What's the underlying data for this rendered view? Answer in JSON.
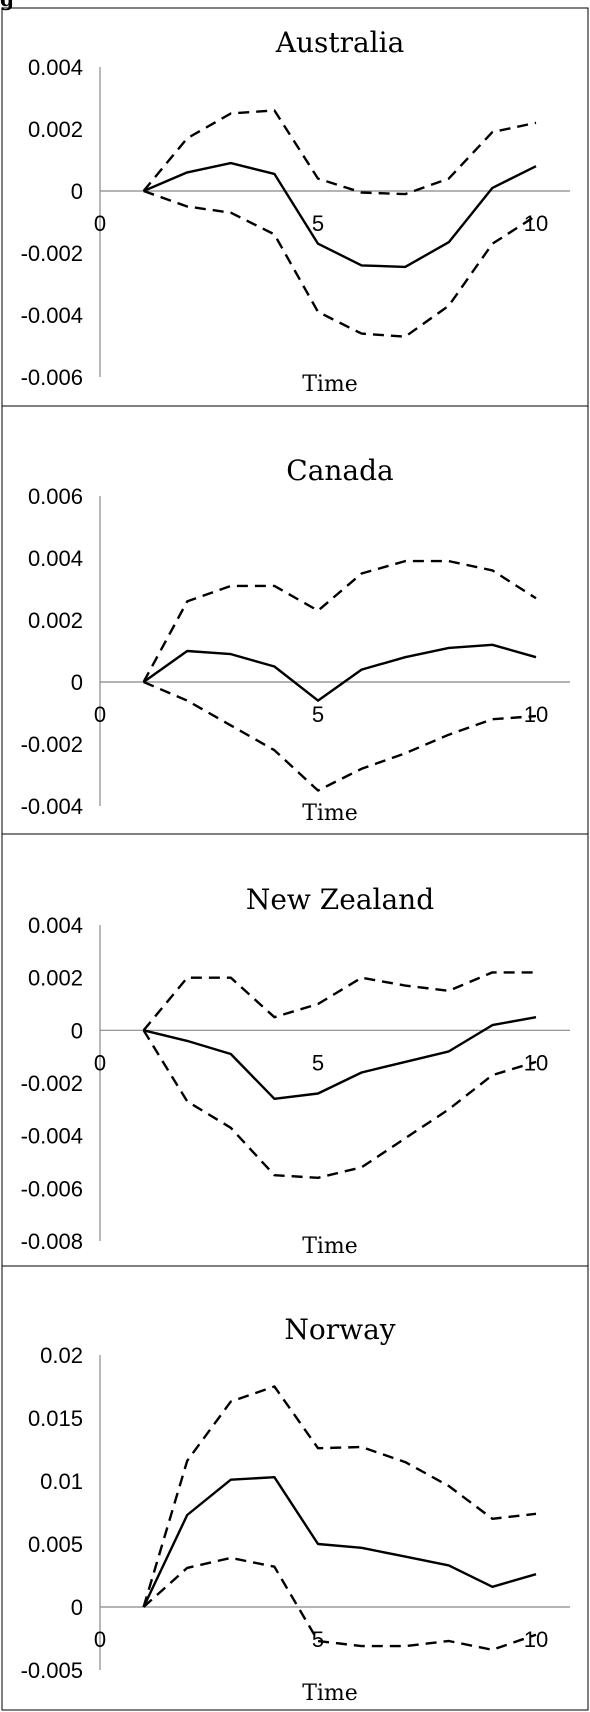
{
  "figure_label": "g",
  "chart_data": [
    {
      "type": "line",
      "title": "Australia",
      "xlabel": "Time",
      "ylabel": "",
      "x": [
        1,
        2,
        3,
        4,
        5,
        6,
        7,
        8,
        9,
        10
      ],
      "xlim": [
        0,
        10
      ],
      "ylim": [
        -0.006,
        0.004
      ],
      "x_ticks": [
        {
          "v": 0,
          "label": "0"
        },
        {
          "v": 5,
          "label": "5"
        },
        {
          "v": 10,
          "label": "10"
        }
      ],
      "y_ticks": [
        {
          "v": 0.004,
          "label": "0.004"
        },
        {
          "v": 0.002,
          "label": "0.002"
        },
        {
          "v": 0,
          "label": "0"
        },
        {
          "v": -0.002,
          "label": "-0.002"
        },
        {
          "v": -0.004,
          "label": "-0.004"
        },
        {
          "v": -0.006,
          "label": "-0.006"
        }
      ],
      "series": [
        {
          "style": "solid",
          "values": [
            0,
            0.0006,
            0.0009,
            0.00055,
            -0.0017,
            -0.0024,
            -0.00245,
            -0.00165,
            0.0001,
            0.0008
          ]
        },
        {
          "style": "dashed",
          "values": [
            0,
            0.0017,
            0.0025,
            0.0026,
            0.0004,
            -5e-05,
            -0.0001,
            0.0004,
            0.0019,
            0.0022
          ]
        },
        {
          "style": "dashed",
          "values": [
            0,
            -0.0005,
            -0.0007,
            -0.0014,
            -0.0039,
            -0.0046,
            -0.0047,
            -0.0037,
            -0.0017,
            -0.0008
          ]
        }
      ]
    },
    {
      "type": "line",
      "title": "Canada",
      "xlabel": "Time",
      "ylabel": "",
      "x": [
        1,
        2,
        3,
        4,
        5,
        6,
        7,
        8,
        9,
        10
      ],
      "xlim": [
        0,
        10
      ],
      "ylim": [
        -0.004,
        0.006
      ],
      "x_ticks": [
        {
          "v": 0,
          "label": "0"
        },
        {
          "v": 5,
          "label": "5"
        },
        {
          "v": 10,
          "label": "10"
        }
      ],
      "y_ticks": [
        {
          "v": 0.006,
          "label": "0.006"
        },
        {
          "v": 0.004,
          "label": "0.004"
        },
        {
          "v": 0.002,
          "label": "0.002"
        },
        {
          "v": 0,
          "label": "0"
        },
        {
          "v": -0.002,
          "label": "-0.002"
        },
        {
          "v": -0.004,
          "label": "-0.004"
        }
      ],
      "series": [
        {
          "style": "solid",
          "values": [
            0,
            0.001,
            0.0009,
            0.0005,
            -0.0006,
            0.0004,
            0.0008,
            0.0011,
            0.0012,
            0.0008
          ]
        },
        {
          "style": "dashed",
          "values": [
            0,
            0.0026,
            0.0031,
            0.0031,
            0.0023,
            0.0035,
            0.0039,
            0.0039,
            0.0036,
            0.0027
          ]
        },
        {
          "style": "dashed",
          "values": [
            0,
            -0.0006,
            -0.0014,
            -0.0022,
            -0.0035,
            -0.0028,
            -0.0023,
            -0.0017,
            -0.0012,
            -0.0011
          ]
        }
      ]
    },
    {
      "type": "line",
      "title": "New Zealand",
      "xlabel": "Time",
      "ylabel": "",
      "x": [
        1,
        2,
        3,
        4,
        5,
        6,
        7,
        8,
        9,
        10
      ],
      "xlim": [
        0,
        10
      ],
      "ylim": [
        -0.008,
        0.004
      ],
      "x_ticks": [
        {
          "v": 0,
          "label": "0"
        },
        {
          "v": 5,
          "label": "5"
        },
        {
          "v": 10,
          "label": "10"
        }
      ],
      "y_ticks": [
        {
          "v": 0.004,
          "label": "0.004"
        },
        {
          "v": 0.002,
          "label": "0.002"
        },
        {
          "v": 0,
          "label": "0"
        },
        {
          "v": -0.002,
          "label": "-0.002"
        },
        {
          "v": -0.004,
          "label": "-0.004"
        },
        {
          "v": -0.006,
          "label": "-0.006"
        },
        {
          "v": -0.008,
          "label": "-0.008"
        }
      ],
      "series": [
        {
          "style": "solid",
          "values": [
            0,
            -0.0004,
            -0.0009,
            -0.0026,
            -0.0024,
            -0.0016,
            -0.0012,
            -0.0008,
            0.0002,
            0.0005
          ]
        },
        {
          "style": "dashed",
          "values": [
            0,
            0.002,
            0.002,
            0.0005,
            0.001,
            0.002,
            0.0017,
            0.0015,
            0.0022,
            0.0022
          ]
        },
        {
          "style": "dashed",
          "values": [
            0,
            -0.0027,
            -0.0037,
            -0.0055,
            -0.0056,
            -0.0052,
            -0.0041,
            -0.003,
            -0.0017,
            -0.0012
          ]
        }
      ]
    },
    {
      "type": "line",
      "title": "Norway",
      "xlabel": "Time",
      "ylabel": "",
      "x": [
        1,
        2,
        3,
        4,
        5,
        6,
        7,
        8,
        9,
        10
      ],
      "xlim": [
        0,
        10
      ],
      "ylim": [
        -0.005,
        0.02
      ],
      "x_ticks": [
        {
          "v": 0,
          "label": "0"
        },
        {
          "v": 5,
          "label": "5"
        },
        {
          "v": 10,
          "label": "10"
        }
      ],
      "y_ticks": [
        {
          "v": 0.02,
          "label": "0.02"
        },
        {
          "v": 0.015,
          "label": "0.015"
        },
        {
          "v": 0.01,
          "label": "0.01"
        },
        {
          "v": 0.005,
          "label": "0.005"
        },
        {
          "v": 0,
          "label": "0"
        },
        {
          "v": -0.005,
          "label": "-0.005"
        }
      ],
      "series": [
        {
          "style": "solid",
          "values": [
            0,
            0.0073,
            0.0101,
            0.0103,
            0.005,
            0.0047,
            0.004,
            0.0033,
            0.0016,
            0.0026
          ]
        },
        {
          "style": "dashed",
          "values": [
            0,
            0.0116,
            0.0163,
            0.0175,
            0.0126,
            0.0127,
            0.0115,
            0.0096,
            0.007,
            0.0074
          ]
        },
        {
          "style": "dashed",
          "values": [
            0,
            0.0031,
            0.0039,
            0.0032,
            -0.0027,
            -0.0031,
            -0.0031,
            -0.0027,
            -0.0034,
            -0.0022
          ]
        }
      ]
    }
  ]
}
